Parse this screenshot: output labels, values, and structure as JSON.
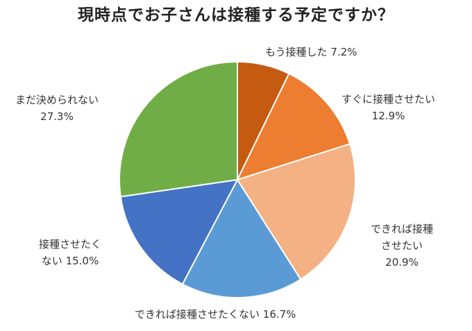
{
  "chart_data": {
    "type": "pie",
    "title": "現時点でお子さんは接種する予定ですか？",
    "start_angle_deg": 0,
    "direction": "clockwise",
    "slices": [
      {
        "label_lines": [
          "もう接種した 7.2%"
        ],
        "value": 7.2,
        "color": "#c55a11"
      },
      {
        "label_lines": [
          "すぐに接種させたい",
          "12.9%"
        ],
        "value": 12.9,
        "color": "#ed7d31"
      },
      {
        "label_lines": [
          "できれば接種",
          "させたい",
          "20.9%"
        ],
        "value": 20.9,
        "color": "#f4b183"
      },
      {
        "label_lines": [
          "できれば接種させたくない 16.7%"
        ],
        "value": 16.7,
        "color": "#5b9bd5"
      },
      {
        "label_lines": [
          "接種させたく",
          "ない 15.0%"
        ],
        "value": 15.0,
        "color": "#4472c4"
      },
      {
        "label_lines": [
          "まだ決められない",
          "27.3%"
        ],
        "value": 27.3,
        "color": "#70ad47"
      }
    ]
  }
}
